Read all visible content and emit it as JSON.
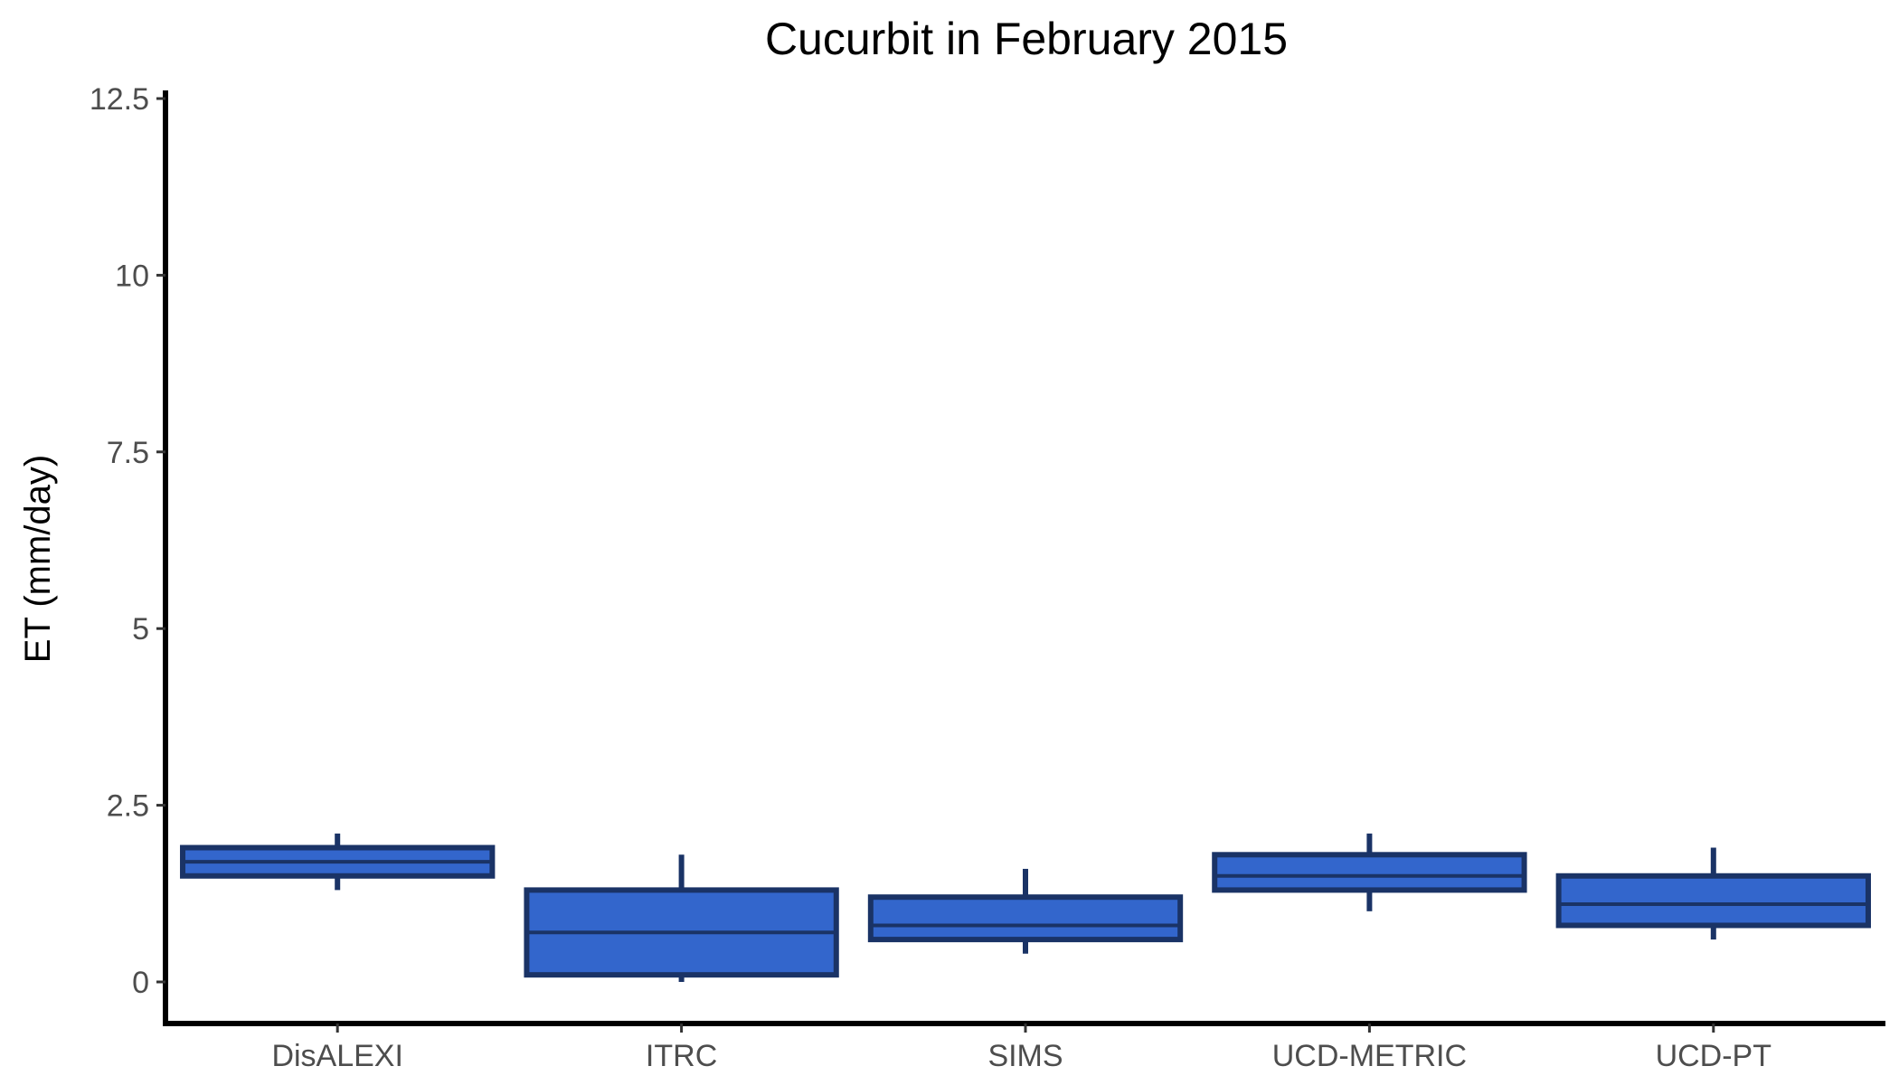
{
  "chart_data": {
    "type": "boxplot",
    "title": "Cucurbit in February 2015",
    "xlabel": "",
    "ylabel": "ET (mm/day)",
    "ylim": [
      -0.6,
      12.6
    ],
    "yticks": [
      0,
      2.5,
      5,
      7.5,
      10,
      12.5
    ],
    "ytick_labels": [
      "0",
      "2.5",
      "5",
      "7.5",
      "10",
      "12.5"
    ],
    "grid": false,
    "legend": "none",
    "categories": [
      "DisALEXI",
      "ITRC",
      "SIMS",
      "UCD-METRIC",
      "UCD-PT"
    ],
    "boxes": [
      {
        "category": "DisALEXI",
        "whisker_low": 1.3,
        "q1": 1.5,
        "median": 1.7,
        "q3": 1.9,
        "whisker_high": 2.1
      },
      {
        "category": "ITRC",
        "whisker_low": 0.0,
        "q1": 0.1,
        "median": 0.7,
        "q3": 1.3,
        "whisker_high": 1.8
      },
      {
        "category": "SIMS",
        "whisker_low": 0.4,
        "q1": 0.6,
        "median": 0.8,
        "q3": 1.2,
        "whisker_high": 1.6
      },
      {
        "category": "UCD-METRIC",
        "whisker_low": 1.0,
        "q1": 1.3,
        "median": 1.5,
        "q3": 1.8,
        "whisker_high": 2.1
      },
      {
        "category": "UCD-PT",
        "whisker_low": 0.6,
        "q1": 0.8,
        "median": 1.1,
        "q3": 1.5,
        "whisker_high": 1.9
      }
    ],
    "colors": {
      "box_fill": "#3366cc",
      "box_outline": "#1a3366",
      "axis": "#000000",
      "tick_label": "#4d4d4d"
    }
  }
}
